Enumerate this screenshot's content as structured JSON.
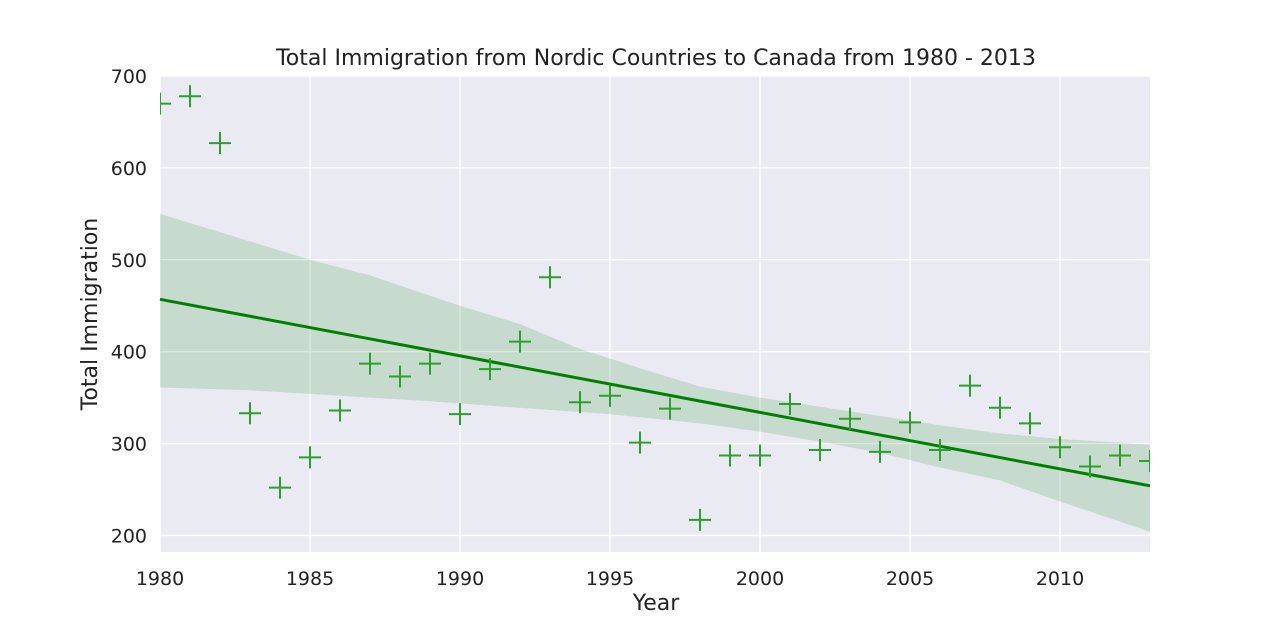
{
  "chart_data": {
    "type": "scatter",
    "title": "Total Immigration from Nordic Countries to Canada from 1980 - 2013",
    "xlabel": "Year",
    "ylabel": "Total Immigration",
    "xlim": [
      1980,
      2013
    ],
    "ylim": [
      182,
      700
    ],
    "xticks": [
      1980,
      1985,
      1990,
      1995,
      2000,
      2005,
      2010
    ],
    "yticks": [
      200,
      300,
      400,
      500,
      600,
      700
    ],
    "grid": true,
    "marker": "+",
    "colors": {
      "points": "#2ca02c",
      "regression_line": "#008000",
      "confidence_band": "#008000",
      "plot_background": "#eaeaf2",
      "grid": "#ffffff"
    },
    "points": [
      {
        "x": 1980,
        "y": 670
      },
      {
        "x": 1981,
        "y": 678
      },
      {
        "x": 1982,
        "y": 627
      },
      {
        "x": 1983,
        "y": 333
      },
      {
        "x": 1984,
        "y": 252
      },
      {
        "x": 1985,
        "y": 285
      },
      {
        "x": 1986,
        "y": 336
      },
      {
        "x": 1987,
        "y": 387
      },
      {
        "x": 1988,
        "y": 373
      },
      {
        "x": 1989,
        "y": 387
      },
      {
        "x": 1990,
        "y": 332
      },
      {
        "x": 1991,
        "y": 381
      },
      {
        "x": 1992,
        "y": 411
      },
      {
        "x": 1993,
        "y": 481
      },
      {
        "x": 1994,
        "y": 345
      },
      {
        "x": 1995,
        "y": 352
      },
      {
        "x": 1996,
        "y": 301
      },
      {
        "x": 1997,
        "y": 338
      },
      {
        "x": 1998,
        "y": 217
      },
      {
        "x": 1999,
        "y": 287
      },
      {
        "x": 2000,
        "y": 287
      },
      {
        "x": 2001,
        "y": 343
      },
      {
        "x": 2002,
        "y": 293
      },
      {
        "x": 2003,
        "y": 327
      },
      {
        "x": 2004,
        "y": 291
      },
      {
        "x": 2005,
        "y": 323
      },
      {
        "x": 2006,
        "y": 293
      },
      {
        "x": 2007,
        "y": 363
      },
      {
        "x": 2008,
        "y": 339
      },
      {
        "x": 2009,
        "y": 322
      },
      {
        "x": 2010,
        "y": 296
      },
      {
        "x": 2011,
        "y": 275
      },
      {
        "x": 2012,
        "y": 287
      },
      {
        "x": 2013,
        "y": 281
      }
    ],
    "regression_line": [
      {
        "x": 1980,
        "y": 457
      },
      {
        "x": 2013,
        "y": 254
      }
    ],
    "confidence_band": {
      "upper": [
        {
          "x": 1980,
          "y": 550
        },
        {
          "x": 1983,
          "y": 520
        },
        {
          "x": 1985,
          "y": 500
        },
        {
          "x": 1987,
          "y": 483
        },
        {
          "x": 1990,
          "y": 450
        },
        {
          "x": 1992,
          "y": 430
        },
        {
          "x": 1994,
          "y": 403
        },
        {
          "x": 1996,
          "y": 382
        },
        {
          "x": 1998,
          "y": 362
        },
        {
          "x": 2000,
          "y": 350
        },
        {
          "x": 2002,
          "y": 340
        },
        {
          "x": 2004,
          "y": 330
        },
        {
          "x": 2006,
          "y": 320
        },
        {
          "x": 2008,
          "y": 311
        },
        {
          "x": 2010,
          "y": 305
        },
        {
          "x": 2013,
          "y": 299
        }
      ],
      "lower": [
        {
          "x": 1980,
          "y": 361
        },
        {
          "x": 1983,
          "y": 358
        },
        {
          "x": 1986,
          "y": 352
        },
        {
          "x": 1989,
          "y": 346
        },
        {
          "x": 1992,
          "y": 339
        },
        {
          "x": 1995,
          "y": 332
        },
        {
          "x": 1998,
          "y": 322
        },
        {
          "x": 2000,
          "y": 313
        },
        {
          "x": 2002,
          "y": 302
        },
        {
          "x": 2004,
          "y": 290
        },
        {
          "x": 2006,
          "y": 274
        },
        {
          "x": 2008,
          "y": 260
        },
        {
          "x": 2010,
          "y": 237
        },
        {
          "x": 2013,
          "y": 204
        }
      ]
    }
  }
}
